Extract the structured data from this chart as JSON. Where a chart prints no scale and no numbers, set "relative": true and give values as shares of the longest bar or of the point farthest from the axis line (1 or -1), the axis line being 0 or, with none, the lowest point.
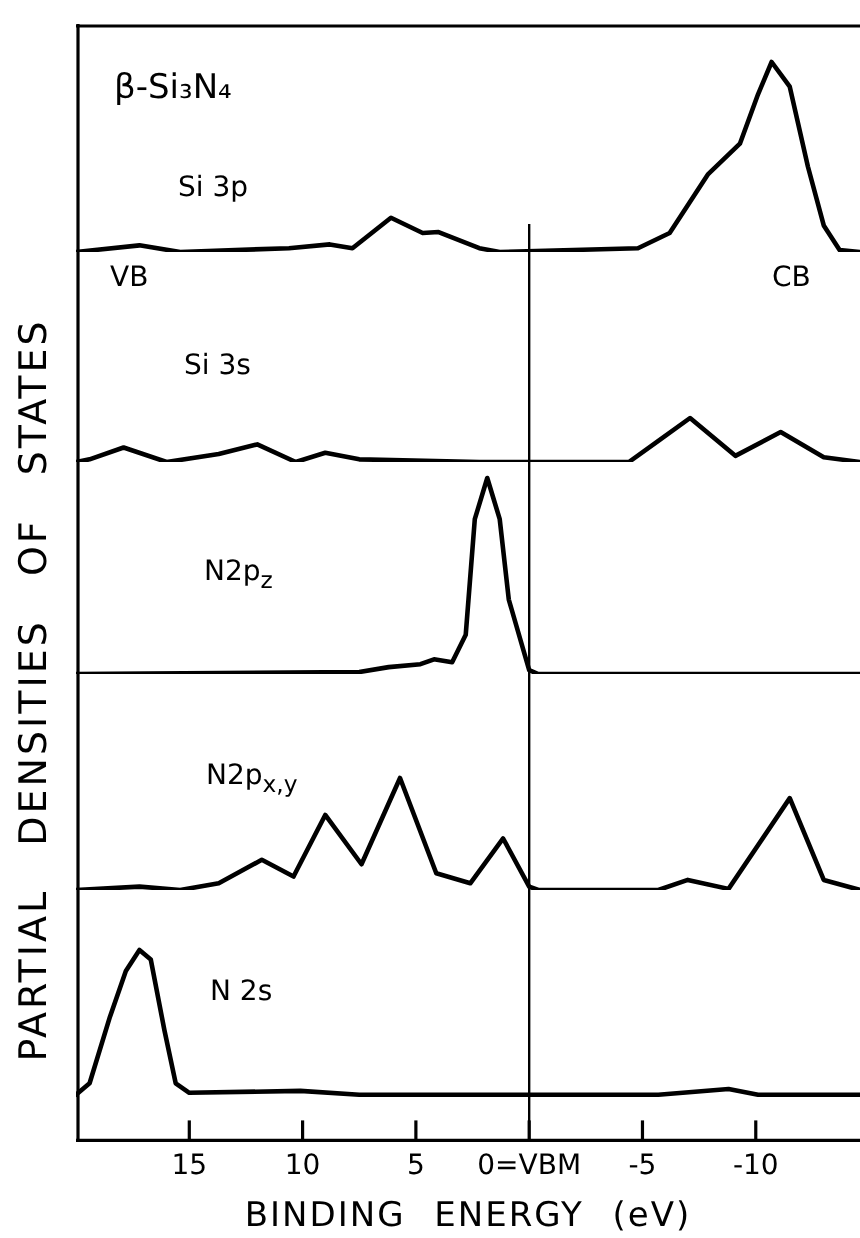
{
  "chart_data": [
    {
      "type": "line",
      "title": "β-Si₃N₄",
      "relative": true,
      "xlim": [
        20,
        -14.6
      ],
      "tick_labels": false,
      "marker": "none",
      "annotations": [
        "VB",
        "CB"
      ],
      "ref_lines": [
        {
          "axis": "x",
          "value": 0
        }
      ],
      "series": [
        {
          "name": "Si 3p",
          "color": "#000000",
          "x": [
            20,
            17.2,
            15.4,
            10.6,
            8.8,
            7.8,
            6.1,
            4.7,
            4.0,
            2.2,
            1.3,
            -4.8,
            -6.2,
            -7.9,
            -9.3,
            -10.1,
            -10.7,
            -11.5,
            -12.3,
            -13.0,
            -13.7,
            -14.6
          ],
          "values": [
            0,
            0.035,
            0,
            0.02,
            0.04,
            0.02,
            0.18,
            0.1,
            0.105,
            0.02,
            0,
            0.02,
            0.1,
            0.41,
            0.57,
            0.83,
            1,
            0.87,
            0.45,
            0.14,
            0.01,
            0
          ]
        }
      ]
    },
    {
      "type": "line",
      "relative": true,
      "xlim": [
        20,
        -14.6
      ],
      "tick_labels": false,
      "marker": "none",
      "ref_lines": [
        {
          "axis": "x",
          "value": 0
        }
      ],
      "series": [
        {
          "name": "Si 3s",
          "color": "#000000",
          "x": [
            20,
            19.4,
            17.9,
            16.0,
            13.7,
            12.0,
            10.3,
            9.0,
            7.5,
            2.2,
            -4.4,
            -5.7,
            -7.1,
            -9.1,
            -11.1,
            -13.0,
            -14.6
          ],
          "values": [
            0,
            0.06,
            0.33,
            0,
            0.18,
            0.4,
            0,
            0.21,
            0.06,
            0,
            0,
            0.48,
            1,
            0.14,
            0.68,
            0.11,
            0
          ]
        }
      ]
    },
    {
      "type": "line",
      "relative": true,
      "xlim": [
        20,
        -14.6
      ],
      "tick_labels": false,
      "marker": "none",
      "ylabel": "PARTIAL DENSITIES OF STATES",
      "ref_lines": [
        {
          "axis": "x",
          "value": 0
        }
      ],
      "series": [
        {
          "name": "N2p$_{z}$",
          "color": "#000000",
          "x": [
            20,
            7.5,
            6.2,
            4.8,
            4.2,
            3.4,
            2.8,
            2.4,
            1.85,
            1.3,
            0.9,
            0,
            -0.4,
            -14.6
          ],
          "values": [
            0,
            0.01,
            0.035,
            0.05,
            0.075,
            0.06,
            0.2,
            0.79,
            1,
            0.79,
            0.38,
            0.02,
            0,
            0
          ]
        }
      ]
    },
    {
      "type": "line",
      "relative": true,
      "xlim": [
        20,
        -14.6
      ],
      "tick_labels": false,
      "marker": "none",
      "ref_lines": [
        {
          "axis": "x",
          "value": 0
        }
      ],
      "series": [
        {
          "name": "N2p$_{x,y}$",
          "color": "#000000",
          "x": [
            20,
            17.2,
            15.4,
            13.7,
            11.8,
            10.4,
            9.0,
            7.4,
            5.7,
            4.1,
            2.6,
            1.15,
            0,
            -0.4,
            -5.7,
            -7.0,
            -8.8,
            -11.5,
            -13.0,
            -14.6
          ],
          "values": [
            0,
            0.03,
            0,
            0.06,
            0.27,
            0.12,
            0.67,
            0.23,
            1,
            0.15,
            0.06,
            0.46,
            0.03,
            0,
            0,
            0.09,
            0.01,
            0.82,
            0.09,
            0
          ]
        }
      ]
    },
    {
      "type": "line",
      "relative": true,
      "xlim": [
        20,
        -14.6
      ],
      "tick_labels": "x",
      "marker": "none",
      "xlabel": "BINDING ENERGY (eV)",
      "xticks": [
        15,
        10,
        5,
        {
          "value": 0,
          "label": "0=VBM"
        },
        -5,
        -10
      ],
      "ref_lines": [
        {
          "axis": "x",
          "value": 0
        }
      ],
      "series": [
        {
          "name": "N 2s",
          "color": "#000000",
          "x": [
            20,
            19.4,
            18.5,
            17.8,
            17.2,
            16.7,
            16.1,
            15.6,
            15.0,
            10.1,
            7.5,
            -5.7,
            -8.8,
            -10.1,
            -14.6
          ],
          "values": [
            0.24,
            0.3,
            0.65,
            0.89,
            1,
            0.95,
            0.58,
            0.3,
            0.25,
            0.26,
            0.24,
            0.24,
            0.27,
            0.24,
            0.24
          ]
        }
      ]
    }
  ]
}
